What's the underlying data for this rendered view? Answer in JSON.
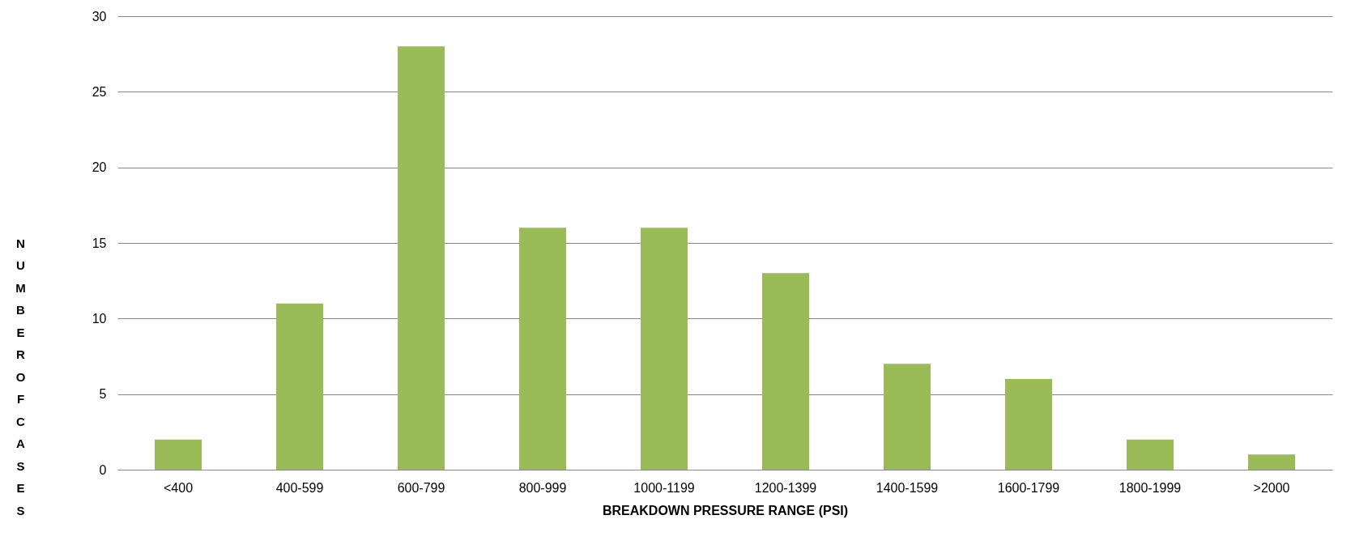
{
  "chart_data": {
    "type": "bar",
    "xlabel": "BREAKDOWN PRESSURE RANGE (PSI)",
    "ylabel": "NUMBER OF CASES",
    "categories": [
      "<400",
      "400-599",
      "600-799",
      "800-999",
      "1000-1199",
      "1200-1399",
      "1400-1599",
      "1600-1799",
      "1800-1999",
      ">2000"
    ],
    "values": [
      2,
      11,
      28,
      16,
      16,
      13,
      7,
      6,
      2,
      1
    ],
    "color": "#9bbb59",
    "ylim": [
      0,
      30
    ],
    "yticks": [
      0,
      5,
      10,
      15,
      20,
      25,
      30
    ],
    "grid": "y"
  }
}
